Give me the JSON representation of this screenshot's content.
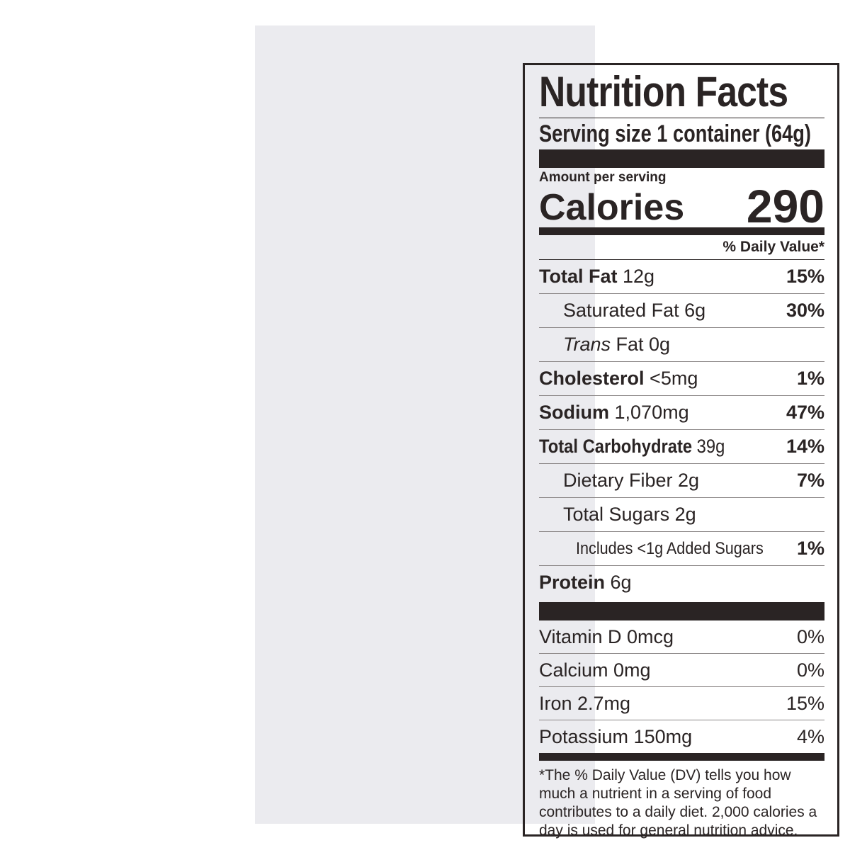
{
  "label": {
    "title": "Nutrition Facts",
    "serving_size": "Serving size  1 container (64g)",
    "amount_per_serving": "Amount per serving",
    "calories_label": "Calories",
    "calories_value": "290",
    "daily_value_header": "% Daily Value*",
    "nutrients": [
      {
        "name": "Total Fat",
        "amount": "12g",
        "dv": "15%"
      },
      {
        "name": "Saturated Fat 6g",
        "amount": "",
        "dv": "30%"
      },
      {
        "name": "Trans",
        "amount": "Fat 0g",
        "dv": ""
      },
      {
        "name": "Cholesterol",
        "amount": "<5mg",
        "dv": "1%"
      },
      {
        "name": "Sodium",
        "amount": "1,070mg",
        "dv": "47%"
      },
      {
        "name": "Total Carbohydrate",
        "amount": "39g",
        "dv": "14%"
      },
      {
        "name": "Dietary Fiber 2g",
        "amount": "",
        "dv": "7%"
      },
      {
        "name": "Total Sugars 2g",
        "amount": "",
        "dv": ""
      },
      {
        "name": "Includes <1g Added Sugars",
        "amount": "",
        "dv": "1%"
      },
      {
        "name": "Protein",
        "amount": "6g",
        "dv": ""
      }
    ],
    "vitamins": [
      {
        "name": "Vitamin D 0mcg",
        "dv": "0%"
      },
      {
        "name": "Calcium 0mg",
        "dv": "0%"
      },
      {
        "name": "Iron 2.7mg",
        "dv": "15%"
      },
      {
        "name": "Potassium 150mg",
        "dv": "4%"
      }
    ],
    "footnote": "*The % Daily Value (DV) tells you how much a nutrient in a serving of food contributes to a daily diet. 2,000 calories a day is used for general nutrition advice."
  }
}
